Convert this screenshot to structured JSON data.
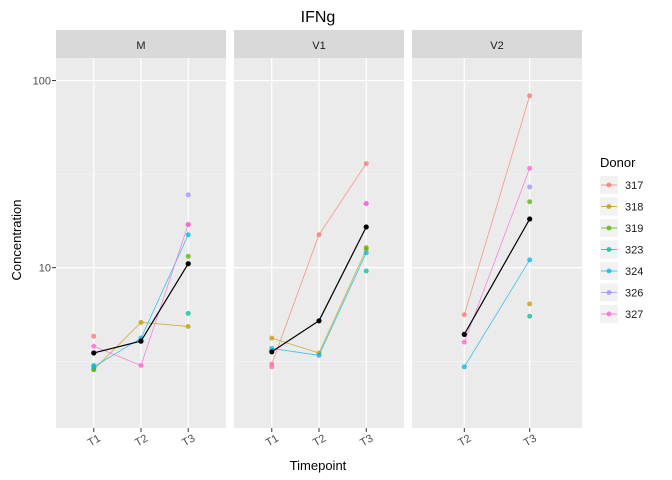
{
  "chart_data": {
    "type": "line",
    "title": "IFNg",
    "xlabel": "Timepoint",
    "ylabel": "Concentration",
    "y_scale": "log10",
    "ylim": [
      1.39,
      132
    ],
    "y_ticks": [
      {
        "value": 10,
        "label": "10"
      },
      {
        "value": 100,
        "label": "100"
      }
    ],
    "y_minor_ticks": [
      3.16,
      31.6
    ],
    "grid": true,
    "legend": {
      "title": "Donor",
      "position": "right"
    },
    "series_colors": {
      "317": "#F8766D",
      "318": "#C49A00",
      "319": "#53B400",
      "323": "#00C094",
      "324": "#00B6EB",
      "326": "#A58AFF",
      "327": "#FB61D7",
      "mean": "#000000"
    },
    "panels": [
      {
        "label": "M",
        "categories": [
          "T1",
          "T2",
          "T3"
        ],
        "series": [
          {
            "name": "317",
            "values": [
              4.3,
              null,
              17
            ]
          },
          {
            "name": "318",
            "values": [
              2.85,
              5.1,
              4.85
            ]
          },
          {
            "name": "319",
            "values": [
              2.85,
              null,
              11.5
            ]
          },
          {
            "name": "323",
            "values": [
              3.0,
              null,
              5.7
            ]
          },
          {
            "name": "324",
            "values": [
              2.95,
              4.2,
              15
            ]
          },
          {
            "name": "326",
            "values": [
              null,
              null,
              24.5
            ]
          },
          {
            "name": "327",
            "values": [
              3.8,
              3.0,
              17
            ]
          },
          {
            "name": "mean",
            "values": [
              3.5,
              4.05,
              10.5
            ]
          }
        ]
      },
      {
        "label": "V1",
        "categories": [
          "T1",
          "T2",
          "T3"
        ],
        "series": [
          {
            "name": "317",
            "values": [
              3.05,
              15,
              36
            ]
          },
          {
            "name": "318",
            "values": [
              4.2,
              3.5,
              12.5
            ]
          },
          {
            "name": "319",
            "values": [
              null,
              null,
              12.8
            ]
          },
          {
            "name": "323",
            "values": [
              null,
              null,
              9.6
            ]
          },
          {
            "name": "324",
            "values": [
              3.7,
              3.4,
              12
            ]
          },
          {
            "name": "326",
            "values": [
              null,
              null,
              22
            ]
          },
          {
            "name": "327",
            "values": [
              2.95,
              null,
              22
            ]
          },
          {
            "name": "mean",
            "values": [
              3.55,
              5.2,
              16.5
            ]
          }
        ]
      },
      {
        "label": "V2",
        "categories": [
          "T2",
          "T3"
        ],
        "series": [
          {
            "name": "317",
            "values": [
              5.6,
              83
            ]
          },
          {
            "name": "318",
            "values": [
              null,
              6.4
            ]
          },
          {
            "name": "319",
            "values": [
              null,
              22.5
            ]
          },
          {
            "name": "323",
            "values": [
              null,
              5.5
            ]
          },
          {
            "name": "324",
            "values": [
              2.95,
              11
            ]
          },
          {
            "name": "326",
            "values": [
              null,
              27
            ]
          },
          {
            "name": "327",
            "values": [
              4.0,
              34
            ]
          },
          {
            "name": "mean",
            "values": [
              4.4,
              18.2
            ]
          }
        ]
      }
    ]
  }
}
